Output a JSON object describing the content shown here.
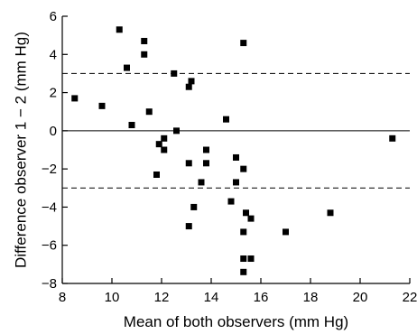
{
  "chart_data": {
    "type": "scatter",
    "title": "",
    "xlabel": "Mean of both observers (mm Hg)",
    "ylabel": "Difference observer 1 − 2 (mm Hg)",
    "xlim": [
      8,
      22
    ],
    "ylim": [
      -8,
      6
    ],
    "xticks": [
      8,
      10,
      12,
      14,
      16,
      18,
      20,
      22
    ],
    "yticks": [
      6,
      4,
      2,
      0,
      -2,
      -4,
      -6,
      -8
    ],
    "xtick_labels": [
      "8",
      "10",
      "12",
      "14",
      "16",
      "18",
      "20",
      "22"
    ],
    "ytick_labels": [
      "6",
      "4",
      "2",
      "0",
      "−2",
      "−4",
      "−6",
      "−8"
    ],
    "grid": false,
    "marker": "square",
    "marker_color": "#000000",
    "reference_lines": [
      {
        "y": 3,
        "style": "dashed"
      },
      {
        "y": 0,
        "style": "solid"
      },
      {
        "y": -3,
        "style": "dashed"
      }
    ],
    "points": [
      {
        "x": 8.5,
        "y": 1.7
      },
      {
        "x": 9.6,
        "y": 1.3
      },
      {
        "x": 10.3,
        "y": 5.3
      },
      {
        "x": 10.6,
        "y": 3.3
      },
      {
        "x": 10.8,
        "y": 0.3
      },
      {
        "x": 11.3,
        "y": 4.7
      },
      {
        "x": 11.3,
        "y": 4.0
      },
      {
        "x": 11.5,
        "y": 1.0
      },
      {
        "x": 11.8,
        "y": -2.3
      },
      {
        "x": 11.9,
        "y": -0.7
      },
      {
        "x": 12.1,
        "y": -0.4
      },
      {
        "x": 12.1,
        "y": -1.0
      },
      {
        "x": 12.5,
        "y": 3.0
      },
      {
        "x": 12.6,
        "y": 0.0
      },
      {
        "x": 13.1,
        "y": 2.3
      },
      {
        "x": 13.2,
        "y": 2.6
      },
      {
        "x": 13.1,
        "y": -1.7
      },
      {
        "x": 13.1,
        "y": -5.0
      },
      {
        "x": 13.3,
        "y": -4.0
      },
      {
        "x": 13.6,
        "y": -2.7
      },
      {
        "x": 13.8,
        "y": -1.0
      },
      {
        "x": 13.8,
        "y": -1.7
      },
      {
        "x": 14.6,
        "y": 0.6
      },
      {
        "x": 14.8,
        "y": -3.7
      },
      {
        "x": 15.0,
        "y": -1.4
      },
      {
        "x": 15.0,
        "y": -2.7
      },
      {
        "x": 15.3,
        "y": 4.6
      },
      {
        "x": 15.3,
        "y": -2.0
      },
      {
        "x": 15.3,
        "y": -5.3
      },
      {
        "x": 15.3,
        "y": -6.7
      },
      {
        "x": 15.3,
        "y": -7.4
      },
      {
        "x": 15.4,
        "y": -4.3
      },
      {
        "x": 15.6,
        "y": -4.6
      },
      {
        "x": 15.6,
        "y": -6.7
      },
      {
        "x": 17.0,
        "y": -5.3
      },
      {
        "x": 18.8,
        "y": -4.3
      },
      {
        "x": 21.3,
        "y": -0.4
      }
    ]
  }
}
